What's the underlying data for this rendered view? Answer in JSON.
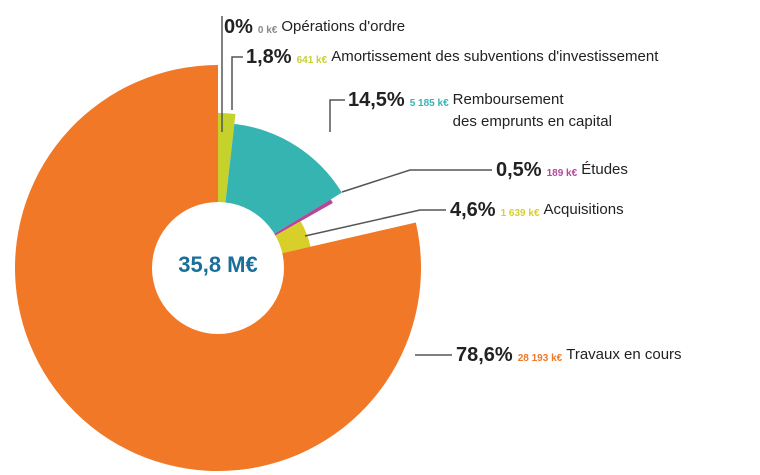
{
  "chart_data": {
    "type": "pie",
    "total_label": "35,8 M€",
    "categories": [
      "Opérations d'ordre",
      "Amortissement des subventions d'investissement",
      "Remboursement\ndes emprunts en capital",
      "Études",
      "Acquisitions",
      "Travaux en cours"
    ],
    "values": [
      0,
      1.8,
      14.5,
      0.5,
      4.6,
      78.6
    ],
    "value_labels": [
      "0%",
      "1,8%",
      "14,5%",
      "0,5%",
      "4,6%",
      "78,6%"
    ],
    "amount_labels": [
      "0 k€",
      "641 k€",
      "5 185 k€",
      "189 k€",
      "1 639 k€",
      "28 193 k€"
    ],
    "colors": [
      "#8a8a8a",
      "#c6d22c",
      "#35b4b2",
      "#b5479a",
      "#d8cf2a",
      "#f07826"
    ]
  }
}
